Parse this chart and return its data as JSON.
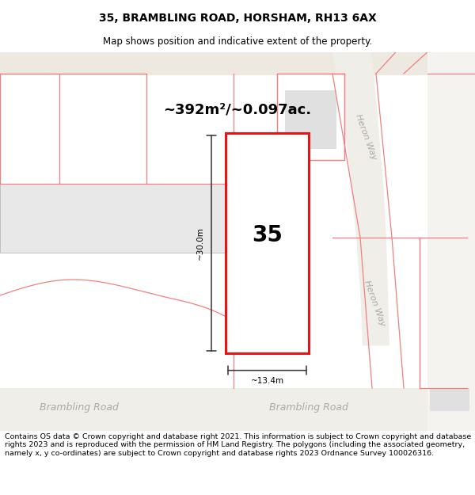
{
  "title": "35, BRAMBLING ROAD, HORSHAM, RH13 6AX",
  "subtitle": "Map shows position and indicative extent of the property.",
  "footer": "Contains OS data © Crown copyright and database right 2021. This information is subject to Crown copyright and database rights 2023 and is reproduced with the permission of HM Land Registry. The polygons (including the associated geometry, namely x, y co-ordinates) are subject to Crown copyright and database rights 2023 Ordnance Survey 100026316.",
  "bg_color": "#ffffff",
  "map_bg": "#ffffff",
  "area_text": "~392m²/~0.097ac.",
  "number_label": "35",
  "width_label": "~13.4m",
  "height_label": "~30.0m",
  "road_label_left": "Brambling Road",
  "road_label_right": "Brambling Road",
  "road_label_v1": "Heron Way",
  "road_label_v2": "Heron Way",
  "red_color": "#ee1111",
  "pink_color": "#f08080",
  "gray_fill": "#d8d8d8",
  "road_gray": "#c8c8c8",
  "title_fontsize": 10,
  "subtitle_fontsize": 8.5,
  "footer_fontsize": 6.8
}
